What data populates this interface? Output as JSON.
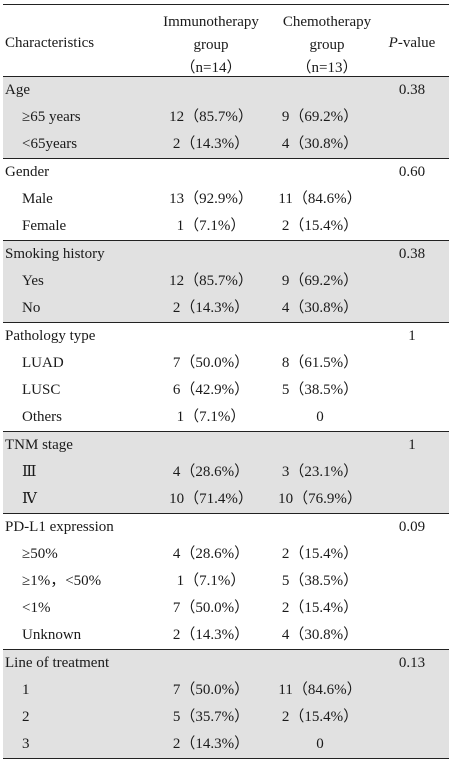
{
  "header": {
    "characteristics": "Characteristics",
    "immuno_line1": "Immunotherapy",
    "immuno_line2": "group",
    "immuno_line3": "（n=14）",
    "chemo_line1": "Chemotherapy",
    "chemo_line2": "group",
    "chemo_line3": "（n=13）",
    "pvalue_italic": "P",
    "pvalue_rest": "-value"
  },
  "groups": [
    {
      "label": "Age",
      "p": "0.38",
      "shaded": true,
      "rows": [
        {
          "label": "≥65 years",
          "immuno": "12（85.7%）",
          "chemo": "9（69.2%）"
        },
        {
          "label": "<65years",
          "immuno": "2（14.3%）",
          "chemo": "4（30.8%）"
        }
      ]
    },
    {
      "label": "Gender",
      "p": "0.60",
      "shaded": false,
      "rows": [
        {
          "label": "Male",
          "immuno": "13（92.9%）",
          "chemo": "11（84.6%）"
        },
        {
          "label": "Female",
          "immuno": "1（7.1%）",
          "chemo": "2（15.4%）"
        }
      ]
    },
    {
      "label": "Smoking history",
      "p": "0.38",
      "shaded": true,
      "rows": [
        {
          "label": "Yes",
          "immuno": "12（85.7%）",
          "chemo": "9（69.2%）"
        },
        {
          "label": "No",
          "immuno": "2（14.3%）",
          "chemo": "4（30.8%）"
        }
      ]
    },
    {
      "label": "Pathology type",
      "p": "1",
      "shaded": false,
      "rows": [
        {
          "label": "LUAD",
          "immuno": "7（50.0%）",
          "chemo": "8（61.5%）"
        },
        {
          "label": "LUSC",
          "immuno": "6（42.9%）",
          "chemo": "5（38.5%）"
        },
        {
          "label": "Others",
          "immuno": "1（7.1%）",
          "chemo": "0"
        }
      ]
    },
    {
      "label": "TNM stage",
      "p": "1",
      "shaded": true,
      "rows": [
        {
          "label": "Ⅲ",
          "immuno": "4（28.6%）",
          "chemo": "3（23.1%）"
        },
        {
          "label": "Ⅳ",
          "immuno": "10（71.4%）",
          "chemo": "10（76.9%）"
        }
      ]
    },
    {
      "label": "PD-L1 expression",
      "p": "0.09",
      "shaded": false,
      "rows": [
        {
          "label": "≥50%",
          "immuno": "4（28.6%）",
          "chemo": "2（15.4%）"
        },
        {
          "label": "≥1%，<50%",
          "immuno": "1（7.1%）",
          "chemo": "5（38.5%）"
        },
        {
          "label": "<1%",
          "immuno": "7（50.0%）",
          "chemo": "2（15.4%）"
        },
        {
          "label": "Unknown",
          "immuno": "2（14.3%）",
          "chemo": "4（30.8%）"
        }
      ]
    },
    {
      "label": "Line of treatment",
      "p": "0.13",
      "shaded": true,
      "rows": [
        {
          "label": "1",
          "immuno": "7（50.0%）",
          "chemo": "11（84.6%）"
        },
        {
          "label": "2",
          "immuno": "5（35.7%）",
          "chemo": "2（15.4%）"
        },
        {
          "label": "3",
          "immuno": "2（14.3%）",
          "chemo": "0"
        }
      ]
    }
  ]
}
